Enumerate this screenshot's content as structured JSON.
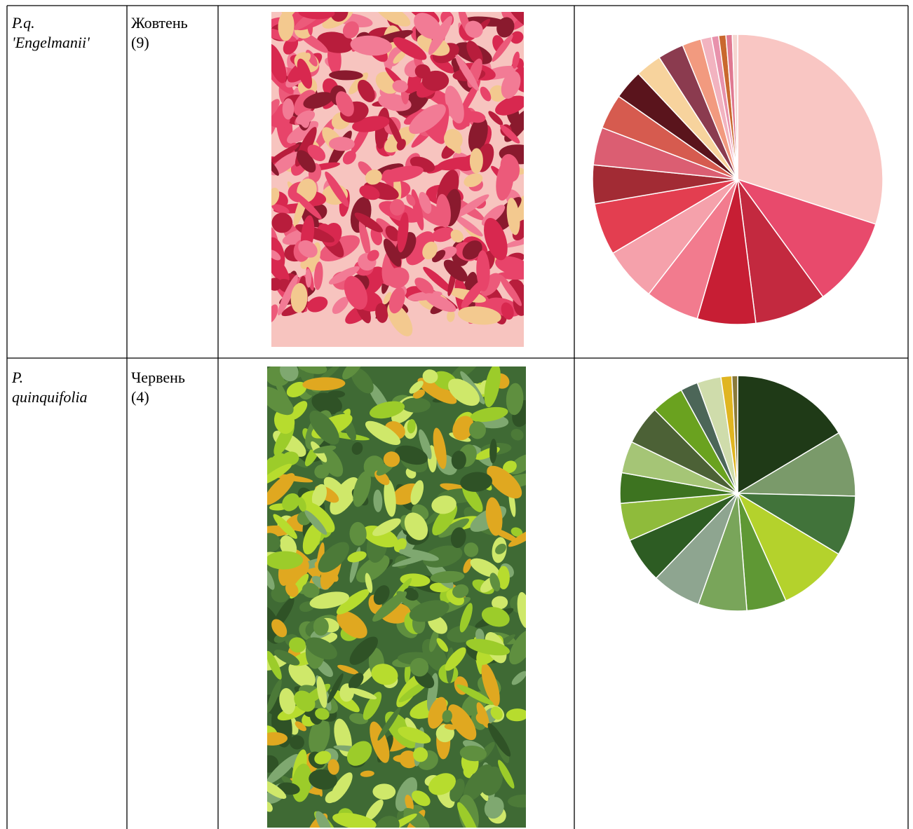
{
  "table": {
    "rows": [
      [
        [
          "P.q.",
          "'Engelmanii'"
        ],
        [
          "Жовтень",
          "(9)"
        ]
      ],
      [
        [
          "P.",
          "quinquifolia"
        ],
        [
          "Червень",
          "(4)"
        ]
      ]
    ]
  },
  "chart_data": [
    {
      "type": "pie",
      "values": [
        30,
        10,
        8,
        6.5,
        6,
        6,
        5.8,
        4.3,
        4.2,
        3.9,
        3.3,
        2.9,
        2.9,
        2.1,
        1.2,
        0.8,
        0.8,
        0.7,
        0.6
      ],
      "colors": [
        "#f9c6c3",
        "#e84a6c",
        "#c3293f",
        "#c71e34",
        "#f27b8e",
        "#f5a1ab",
        "#e33e50",
        "#a22b34",
        "#db5e72",
        "#d65b4f",
        "#5a141c",
        "#f7d39d",
        "#8b3b4f",
        "#f29a7f",
        "#f2b3c0",
        "#e892ac",
        "#c9682e",
        "#e07991",
        "#f5d6d0"
      ]
    },
    {
      "type": "pie",
      "values": [
        16.5,
        9,
        8.3,
        9.7,
        5.5,
        6.7,
        6.8,
        6.3,
        5.2,
        4.2,
        4.4,
        5.4,
        4.5,
        2.4,
        3.3,
        1.5,
        0.8
      ],
      "colors": [
        "#1f3a17",
        "#7a9a6a",
        "#41733a",
        "#b4d22c",
        "#5f9834",
        "#79a55a",
        "#8ea590",
        "#2d5c23",
        "#8fbb3b",
        "#3d7320",
        "#a5c576",
        "#4c6136",
        "#6aa21f",
        "#4c6658",
        "#cfdcab",
        "#e0b521",
        "#8a7a3a"
      ]
    }
  ]
}
